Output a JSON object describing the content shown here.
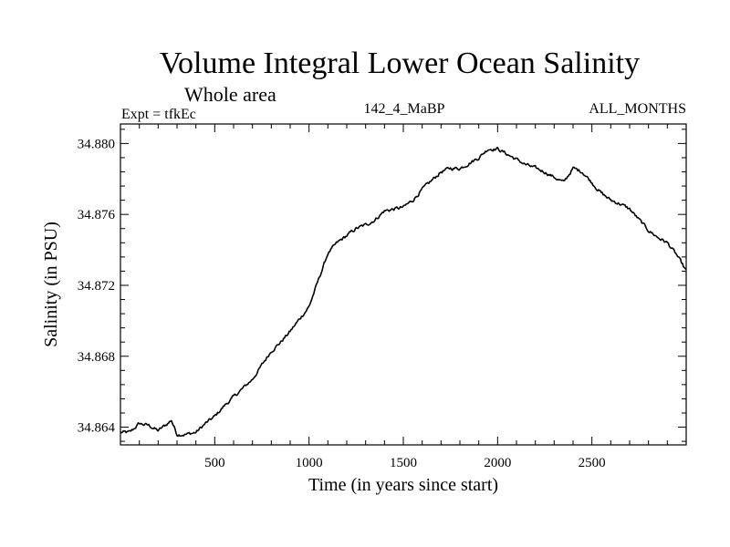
{
  "chart_data": {
    "type": "line",
    "title": "Volume Integral Lower Ocean Salinity",
    "subtitle": "Whole area",
    "expt_label": "Expt = tfkEc",
    "run_label": "142_4_MaBP",
    "months_label": "ALL_MONTHS",
    "xlabel": "Time (in years since start)",
    "ylabel": "Salinity (in PSU)",
    "xlim": [
      0,
      3000
    ],
    "ylim": [
      34.863,
      34.8811
    ],
    "xticks": [
      500,
      1000,
      1500,
      2000,
      2500
    ],
    "xtick_labels": [
      "500",
      "1000",
      "1500",
      "2000",
      "2500"
    ],
    "yticks": [
      34.864,
      34.868,
      34.872,
      34.876,
      34.88
    ],
    "ytick_labels": [
      "34.864",
      "34.868",
      "34.872",
      "34.876",
      "34.880"
    ],
    "grid": false,
    "line_color": "#000000",
    "series": [
      {
        "x": [
          0,
          50,
          100,
          150,
          200,
          250,
          270,
          300,
          350,
          400,
          450,
          500,
          550,
          600,
          650,
          700,
          750,
          800,
          850,
          900,
          950,
          1000,
          1050,
          1100,
          1150,
          1200,
          1250,
          1300,
          1350,
          1400,
          1450,
          1500,
          1550,
          1600,
          1650,
          1700,
          1750,
          1800,
          1850,
          1900,
          1950,
          2000,
          2050,
          2100,
          2150,
          2200,
          2250,
          2300,
          2350,
          2400,
          2450,
          2500,
          2550,
          2600,
          2650,
          2700,
          2750,
          2800,
          2850,
          2900,
          2950,
          3000
        ],
        "values": [
          34.8637,
          34.8637,
          34.8642,
          34.8641,
          34.8638,
          34.8642,
          34.8644,
          34.8636,
          34.8636,
          34.8637,
          34.8642,
          34.8646,
          34.8652,
          34.8657,
          34.8662,
          34.8667,
          34.8675,
          34.8683,
          34.8688,
          34.8694,
          34.8701,
          34.8708,
          34.8723,
          34.8738,
          34.8744,
          34.8748,
          34.8752,
          34.8754,
          34.8757,
          34.8762,
          34.8763,
          34.8764,
          34.8768,
          34.8774,
          34.8779,
          34.8784,
          34.8786,
          34.8786,
          34.8789,
          34.8792,
          34.8797,
          34.8797,
          34.8794,
          34.8791,
          34.8788,
          34.8786,
          34.8784,
          34.8781,
          34.8778,
          34.8786,
          34.8784,
          34.8778,
          34.8772,
          34.8768,
          34.8766,
          34.8763,
          34.8757,
          34.8751,
          34.8747,
          34.8744,
          34.8737,
          34.8728
        ]
      }
    ]
  }
}
